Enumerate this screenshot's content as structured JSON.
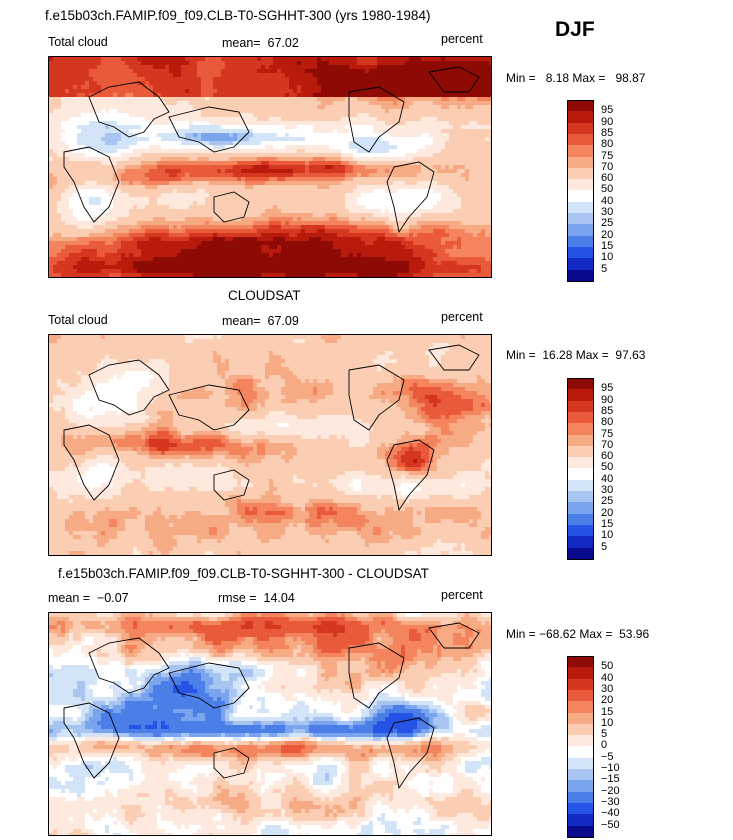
{
  "season": "DJF",
  "colors": {
    "pos": [
      "#fde9dd",
      "#fcd2b8",
      "#f9b08c",
      "#f68a66",
      "#ee6342",
      "#e0432a",
      "#cc2a18",
      "#b3180a",
      "#8c0a05"
    ],
    "neg": [
      "#dce9f7",
      "#b9d2f0",
      "#95b8ec",
      "#6f9beb",
      "#4a7ce8",
      "#2c5ee6",
      "#1a3fd0",
      "#0f25a8",
      "#061272"
    ],
    "pct_scale": [
      "#0a0a8c",
      "#1329c4",
      "#2453e6",
      "#4c7ee8",
      "#7aa4ed",
      "#a8c5f2",
      "#d3e3f8",
      "#ffffff",
      "#fde9dd",
      "#fbcdb2",
      "#f7ab85",
      "#f3845e",
      "#e95a3a",
      "#d5361f",
      "#b81a0c",
      "#8e0a04"
    ],
    "diff_scale": [
      "#0a0a8c",
      "#1329c4",
      "#2453e6",
      "#4c7ee8",
      "#7aa4ed",
      "#a8c5f2",
      "#d3e3f8",
      "#ffffff",
      "#fde9dd",
      "#fbcdb2",
      "#f7ab85",
      "#f3845e",
      "#e95a3a",
      "#d5361f",
      "#b81a0c",
      "#8e0a04"
    ]
  },
  "chart_data": [
    {
      "type": "heatmap",
      "title": "f.e15b03ch.FAMIP.f09_f09.CLB-T0-SGHHT-300 (yrs 1980-1984)",
      "variable": "Total cloud",
      "mean_label": "mean=",
      "mean": "67.02",
      "units": "percent",
      "min_label": "Min =",
      "min": "8.18",
      "max_label": "Max =",
      "max": "98.87",
      "levels": [
        "95",
        "90",
        "85",
        "80",
        "75",
        "70",
        "60",
        "50",
        "40",
        "30",
        "25",
        "20",
        "15",
        "10",
        "5"
      ],
      "field": "model"
    },
    {
      "type": "heatmap",
      "title": "CLOUDSAT",
      "variable": "Total cloud",
      "mean_label": "mean=",
      "mean": "67.09",
      "units": "percent",
      "min_label": "Min =",
      "min": "16.28",
      "max_label": "Max =",
      "max": "97.63",
      "levels": [
        "95",
        "90",
        "85",
        "80",
        "75",
        "70",
        "60",
        "50",
        "40",
        "30",
        "25",
        "20",
        "15",
        "10",
        "5"
      ],
      "field": "obs"
    },
    {
      "type": "heatmap",
      "title": "f.e15b03ch.FAMIP.f09_f09.CLB-T0-SGHHT-300 - CLOUDSAT",
      "mean_label": "mean =",
      "mean": "−0.07",
      "rmse_label": "rmse =",
      "rmse": "14.04",
      "units": "percent",
      "min_label": "Min =",
      "min": "−68.62",
      "max_label": "Max =",
      "max": "53.96",
      "levels": [
        "50",
        "40",
        "30",
        "20",
        "15",
        "10",
        "5",
        "0",
        "−5",
        "−10",
        "−15",
        "−20",
        "−30",
        "−40",
        "−50"
      ],
      "field": "diff"
    }
  ]
}
